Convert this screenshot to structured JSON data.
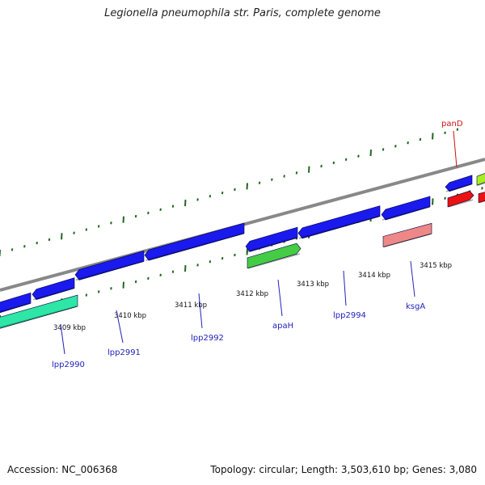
{
  "title": "Legionella pneumophila str. Paris, complete genome",
  "footer": {
    "accession": "Accession: NC_006368",
    "topology": "Topology: circular; Length: 3,503,610 bp; Genes: 3,080"
  },
  "colors": {
    "cds_blue": "#1a1aee",
    "cds_teal": "#2ee6a6",
    "cds_green": "#44cc44",
    "cds_pink": "#ee8888",
    "cds_red": "#ee1111",
    "cds_lime": "#a6ee22",
    "backbone": "#888888",
    "tick": "#226622",
    "label_blue": "#2222bb",
    "label_red": "#cc1111"
  },
  "scale_labels": [
    "3409 kbp",
    "3410 kbp",
    "3411 kbp",
    "3412 kbp",
    "3413 kbp",
    "3414 kbp",
    "3415 kbp"
  ],
  "gene_labels": [
    {
      "text": "lpp2990",
      "color": "label_blue"
    },
    {
      "text": "lpp2991",
      "color": "label_blue"
    },
    {
      "text": "lpp2992",
      "color": "label_blue"
    },
    {
      "text": "apaH",
      "color": "label_blue"
    },
    {
      "text": "lpp2994",
      "color": "label_blue"
    },
    {
      "text": "ksgA",
      "color": "label_blue"
    },
    {
      "text": "panD",
      "color": "label_red"
    }
  ],
  "features": [
    {
      "name": "feature-blue-0",
      "color": "cds_blue",
      "strand": "reverse"
    },
    {
      "name": "feature-blue-1",
      "color": "cds_blue",
      "strand": "reverse"
    },
    {
      "name": "feature-blue-2",
      "color": "cds_blue",
      "strand": "reverse"
    },
    {
      "name": "feature-blue-3",
      "color": "cds_blue",
      "strand": "reverse"
    },
    {
      "name": "feature-blue-4",
      "color": "cds_blue",
      "strand": "reverse"
    },
    {
      "name": "feature-blue-5",
      "color": "cds_blue",
      "strand": "reverse"
    },
    {
      "name": "feature-blue-6",
      "color": "cds_blue",
      "strand": "reverse"
    },
    {
      "name": "feature-blue-7",
      "color": "cds_blue",
      "strand": "reverse"
    },
    {
      "name": "feature-teal-lpp2990",
      "color": "cds_teal",
      "strand": "reverse"
    },
    {
      "name": "feature-green-apaH",
      "color": "cds_green",
      "strand": "forward"
    },
    {
      "name": "feature-pink-ksgA",
      "color": "cds_pink",
      "strand": "none"
    },
    {
      "name": "feature-red-panD",
      "color": "cds_red",
      "strand": "forward"
    },
    {
      "name": "feature-lime",
      "color": "cds_lime",
      "strand": "forward"
    }
  ]
}
